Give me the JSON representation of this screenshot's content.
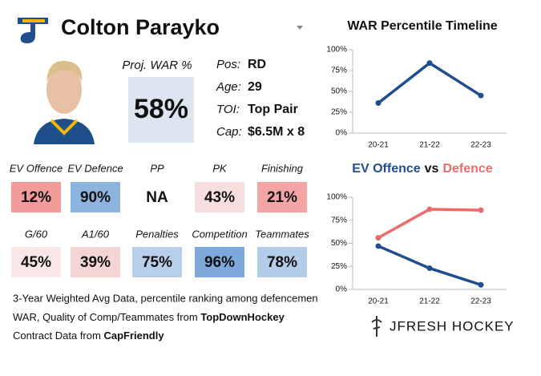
{
  "header": {
    "name": "Colton Parayko"
  },
  "projection": {
    "label": "Proj. WAR %",
    "value": "58%",
    "color": "#dde6f0"
  },
  "bio": [
    {
      "label": "Pos:",
      "value": "RD"
    },
    {
      "label": "Age:",
      "value": 29
    },
    {
      "label": "TOI:",
      "value": "Top Pair"
    },
    {
      "label": "Cap:",
      "value": "$6.5M x 8"
    }
  ],
  "stats": [
    {
      "label": "EV Offence",
      "value": "12%",
      "color": "#f39a9a"
    },
    {
      "label": "EV Defence",
      "value": "90%",
      "color": "#8db3df"
    },
    {
      "label": "PP",
      "value": "NA",
      "color": "#ffffff"
    },
    {
      "label": "PK",
      "value": "43%",
      "color": "#f7dede"
    },
    {
      "label": "Finishing",
      "value": "21%",
      "color": "#f3a5a5"
    },
    {
      "label": "G/60",
      "value": "45%",
      "color": "#f9e6e6"
    },
    {
      "label": "A1/60",
      "value": "39%",
      "color": "#f5d4d4"
    },
    {
      "label": "Penalties",
      "value": "75%",
      "color": "#b8cfe9"
    },
    {
      "label": "Competition",
      "value": "96%",
      "color": "#7da8da"
    },
    {
      "label": "Teammates",
      "value": "78%",
      "color": "#b3cce9"
    }
  ],
  "footer": {
    "note": "3-Year Weighted Avg Data, percentile ranking among defencemen",
    "war_source": {
      "text": "WAR, Quality of Comp/Teammates from",
      "source": "TopDownHockey"
    },
    "contract_source": {
      "text": "Contract Data from",
      "source": "CapFriendly"
    }
  },
  "branding": "JFRESH HOCKEY",
  "chart_data": [
    {
      "type": "line",
      "title": "WAR Percentile Timeline",
      "categories": [
        "20-21",
        "21-22",
        "22-23"
      ],
      "series": [
        {
          "color": "#1f4e8c",
          "values": [
            36,
            84,
            45
          ]
        }
      ],
      "ylim": [
        0,
        100
      ],
      "yticks": [
        {
          "value": 0,
          "label": "0%"
        },
        {
          "value": 25,
          "label": "25%"
        },
        {
          "value": 50,
          "label": "50%"
        },
        {
          "value": 75,
          "label": "75%"
        },
        {
          "value": 100,
          "label": "100%"
        }
      ]
    },
    {
      "type": "line",
      "title": [
        "EV Offence",
        "vs",
        "Defence"
      ],
      "categories": [
        "20-21",
        "21-22",
        "22-23"
      ],
      "series": [
        {
          "color": "#1f4e8c",
          "values": [
            47,
            23,
            5
          ]
        },
        {
          "color": "#ef6b6b",
          "values": [
            56,
            87,
            86
          ]
        }
      ],
      "ylim": [
        0,
        100
      ],
      "yticks": [
        {
          "value": 0,
          "label": "0%"
        },
        {
          "value": 25,
          "label": "25%"
        },
        {
          "value": 50,
          "label": "50%"
        },
        {
          "value": 75,
          "label": "75%"
        },
        {
          "value": 100,
          "label": "100%"
        }
      ]
    }
  ]
}
